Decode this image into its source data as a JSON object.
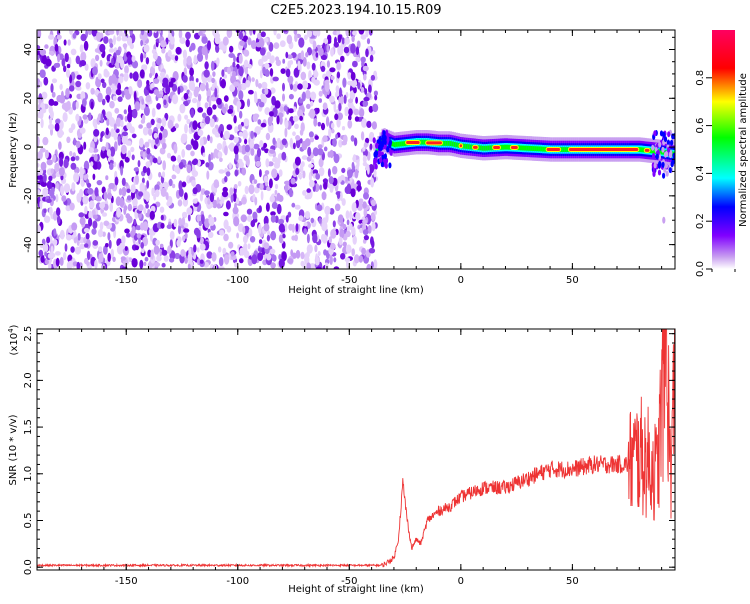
{
  "title": "C2E5.2023.194.10.15.R09",
  "chart_data": [
    {
      "type": "heatmap",
      "xlabel": "Height of straight line (km)",
      "ylabel": "Frequency (Hz)",
      "xlim": [
        -190,
        96
      ],
      "ylim": [
        -50,
        48
      ],
      "xticks": [
        -150,
        -100,
        -50,
        0,
        50
      ],
      "yticks": [
        -40,
        -20,
        0,
        20,
        40
      ],
      "noise_region_x": [
        -190,
        -38
      ],
      "signal_ridge": {
        "x": [
          -38,
          -35,
          -30,
          -25,
          -20,
          -15,
          -10,
          -5,
          0,
          10,
          20,
          30,
          40,
          50,
          60,
          70,
          80,
          85,
          90,
          96
        ],
        "y": [
          -2,
          3,
          1,
          1.5,
          2,
          2,
          1.5,
          1.5,
          0.5,
          -0.5,
          0,
          -0.5,
          -1,
          -1,
          -1,
          -1,
          -1,
          -1.5,
          -2,
          -3
        ]
      },
      "colorbar": {
        "label": "Normalized spectral amplitude",
        "range": [
          0,
          1
        ],
        "ticks": [
          "0.0",
          "0.2",
          "0.4",
          "0.6",
          "0.8"
        ],
        "colors": [
          "#ffffff",
          "#8a2be2",
          "#0000ff",
          "#00ffff",
          "#00ff00",
          "#ffff00",
          "#ff0000",
          "#ff0080"
        ]
      },
      "grid": false
    },
    {
      "type": "line",
      "xlabel": "Height of straight line (km)",
      "ylabel": "SNR (10 * v/v)",
      "y_multiplier": "(x10",
      "y_multiplier_exp": "4",
      "y_multiplier_close": ")",
      "xlim": [
        -190,
        96
      ],
      "ylim": [
        -0.03,
        2.55
      ],
      "xticks": [
        -150,
        -100,
        -50,
        0,
        50
      ],
      "yticks": [
        "0.0",
        "0.5",
        "1.0",
        "1.5",
        "2.0",
        "2.5"
      ],
      "series": [
        {
          "color": "#ee3333",
          "x": [
            -190,
            -150,
            -100,
            -50,
            -35,
            -30,
            -28,
            -26,
            -24,
            -22,
            -20,
            -18,
            -15,
            -10,
            -5,
            0,
            5,
            10,
            15,
            20,
            30,
            40,
            50,
            60,
            70,
            75,
            80,
            85,
            88,
            90,
            92,
            94,
            96
          ],
          "y": [
            0.02,
            0.02,
            0.02,
            0.02,
            0.02,
            0.1,
            0.3,
            0.9,
            0.5,
            0.2,
            0.3,
            0.25,
            0.5,
            0.6,
            0.65,
            0.75,
            0.8,
            0.85,
            0.85,
            0.85,
            0.95,
            1.05,
            1.05,
            1.1,
            1.1,
            1.1,
            1.2,
            1.1,
            1.0,
            1.7,
            2.5,
            1.0,
            2.0
          ]
        }
      ],
      "grid": false
    }
  ]
}
